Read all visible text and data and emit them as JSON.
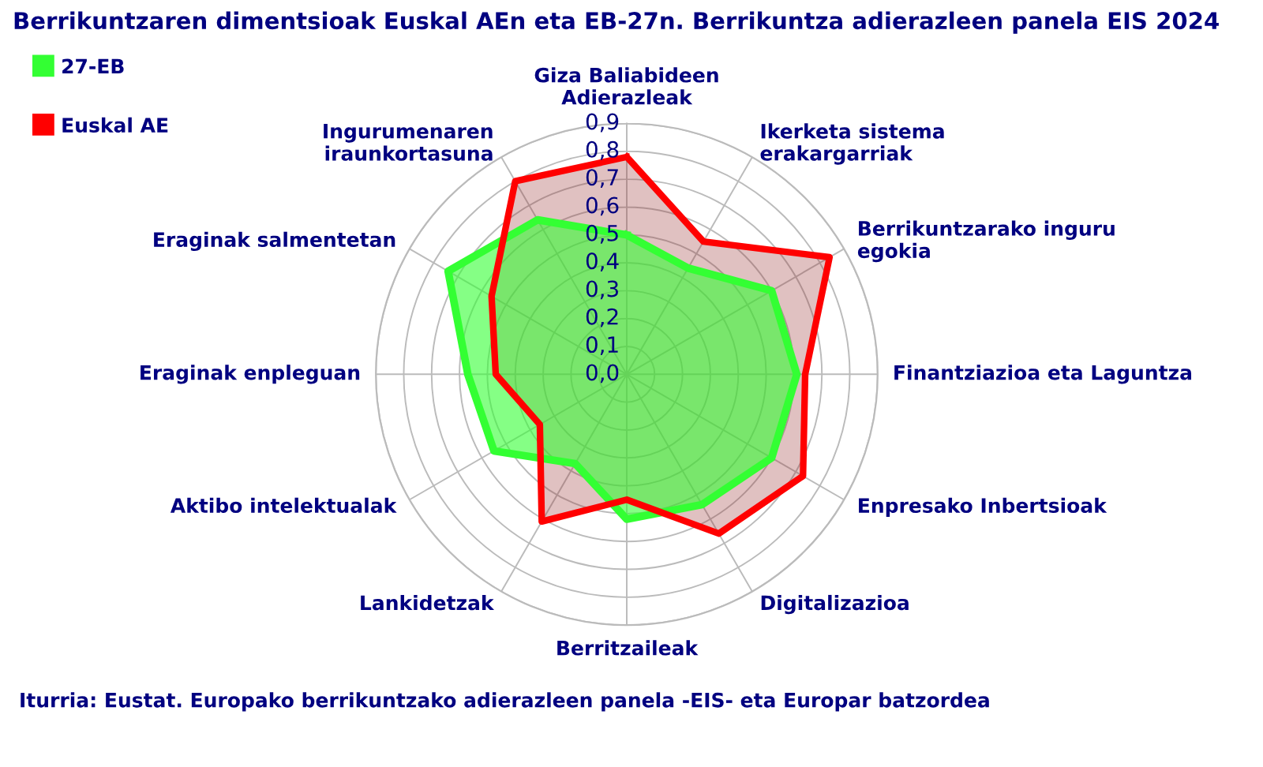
{
  "chart_data": {
    "type": "radar",
    "title": "Berrikuntzaren dimentsioak Euskal AEn eta EB-27n. Berrikuntza adierazleen panela EIS 2024",
    "categories": [
      "Giza Baliabideen\nAdierazleak",
      "Ikerketa sistema\nerakargarriak",
      "Berrikuntzarako inguru\negokia",
      "Finantziazioa eta Laguntza",
      "Enpresako Inbertsioak",
      "Digitalizazioa",
      "Berritzaileak",
      "Lankidetzak",
      "Aktibo intelektualak",
      "Eraginak enpleguan",
      "Eraginak salmentetan",
      "Ingurumenaren\niraunkortasuna"
    ],
    "series": [
      {
        "name": "27-EB",
        "color": "#33ff33",
        "values": [
          0.5,
          0.44,
          0.6,
          0.61,
          0.6,
          0.54,
          0.52,
          0.37,
          0.55,
          0.57,
          0.74,
          0.64
        ]
      },
      {
        "name": "Euskal AE",
        "color": "#ff0000",
        "values": [
          0.78,
          0.55,
          0.84,
          0.64,
          0.73,
          0.66,
          0.45,
          0.61,
          0.36,
          0.47,
          0.56,
          0.8
        ]
      }
    ],
    "ylim": [
      0,
      0.9
    ],
    "yticks": [
      {
        "value": 0,
        "label": "0,0"
      },
      {
        "value": 0.1,
        "label": "0,1"
      },
      {
        "value": 0.2,
        "label": "0,2"
      },
      {
        "value": 0.3,
        "label": "0,3"
      },
      {
        "value": 0.4,
        "label": "0,4"
      },
      {
        "value": 0.5,
        "label": "0,5"
      },
      {
        "value": 0.6,
        "label": "0,6"
      },
      {
        "value": 0.7,
        "label": "0,7"
      },
      {
        "value": 0.8,
        "label": "0,8"
      },
      {
        "value": 0.9,
        "label": "0,9"
      }
    ],
    "grid": true,
    "legend": "top left",
    "marker": "none",
    "line_style": "solid",
    "annotations": [
      "Iturria: Eustat. Europako berrikuntzako adierazleen panela -EIS- eta Europar batzordea"
    ]
  }
}
